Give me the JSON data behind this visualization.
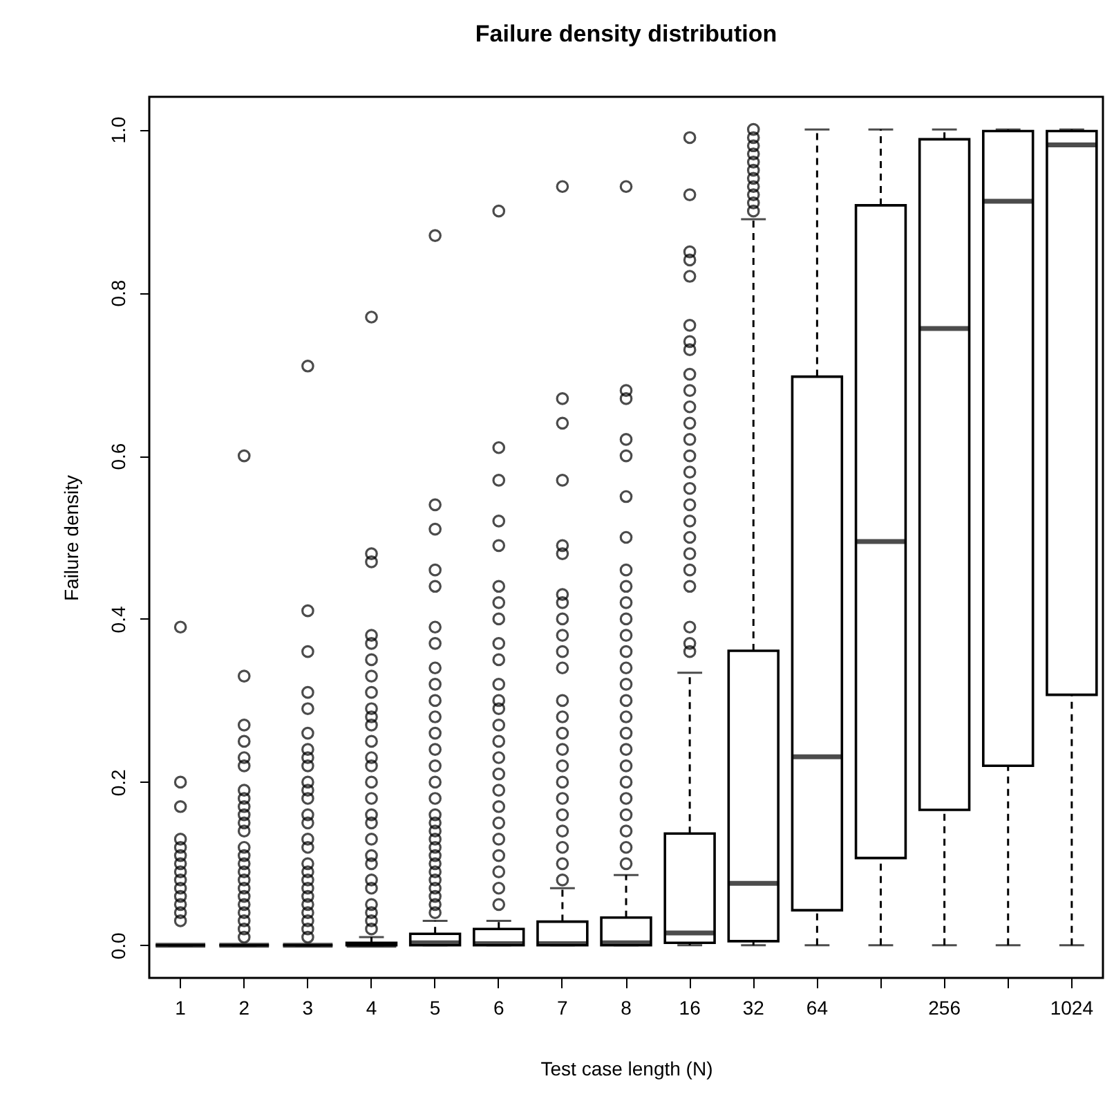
{
  "chart_data": {
    "type": "box",
    "title": "Failure density distribution",
    "xlabel": "Test case length (N)",
    "ylabel": "Failure density",
    "categories": [
      "1",
      "2",
      "3",
      "4",
      "5",
      "6",
      "7",
      "8",
      "16",
      "32",
      "64",
      null,
      "256",
      null,
      "1024"
    ],
    "ylim": [
      -0.04,
      1.04
    ],
    "yticks": [
      {
        "value": 0,
        "label": "0.0"
      },
      {
        "value": 0.2,
        "label": "0.2"
      },
      {
        "value": 0.4,
        "label": "0.4"
      },
      {
        "value": 0.6,
        "label": "0.6"
      },
      {
        "value": 0.8,
        "label": "0.8"
      },
      {
        "value": 1,
        "label": "1.0"
      }
    ],
    "boxes": [
      {
        "low": 0,
        "q1": 0,
        "median": 0,
        "q3": 0,
        "high": 0,
        "outliers": [
          0.39,
          0.2,
          0.17,
          0.13,
          0.12,
          0.11,
          0.1,
          0.09,
          0.08,
          0.07,
          0.06,
          0.05,
          0.04,
          0.03
        ]
      },
      {
        "low": 0,
        "q1": 0,
        "median": 0,
        "q3": 0,
        "high": 0,
        "outliers": [
          0.6,
          0.33,
          0.27,
          0.25,
          0.23,
          0.22,
          0.19,
          0.18,
          0.17,
          0.16,
          0.15,
          0.14,
          0.12,
          0.11,
          0.1,
          0.09,
          0.08,
          0.07,
          0.06,
          0.05,
          0.04,
          0.03,
          0.02,
          0.01
        ]
      },
      {
        "low": 0,
        "q1": 0,
        "median": 0,
        "q3": 0,
        "high": 0,
        "outliers": [
          0.71,
          0.41,
          0.36,
          0.31,
          0.29,
          0.26,
          0.24,
          0.23,
          0.22,
          0.2,
          0.19,
          0.18,
          0.16,
          0.15,
          0.13,
          0.12,
          0.1,
          0.09,
          0.08,
          0.07,
          0.06,
          0.05,
          0.04,
          0.03,
          0.02,
          0.01
        ]
      },
      {
        "low": 0,
        "q1": 0,
        "median": 0,
        "q3": 0.003,
        "high": 0.01,
        "outliers": [
          0.77,
          0.48,
          0.47,
          0.38,
          0.37,
          0.35,
          0.33,
          0.31,
          0.29,
          0.28,
          0.27,
          0.25,
          0.23,
          0.22,
          0.2,
          0.18,
          0.16,
          0.15,
          0.13,
          0.11,
          0.1,
          0.08,
          0.07,
          0.05,
          0.04,
          0.03,
          0.02
        ]
      },
      {
        "low": 0,
        "q1": 0,
        "median": 0.003,
        "q3": 0.014,
        "high": 0.03,
        "outliers": [
          0.87,
          0.54,
          0.51,
          0.46,
          0.44,
          0.39,
          0.37,
          0.34,
          0.32,
          0.3,
          0.28,
          0.26,
          0.24,
          0.22,
          0.2,
          0.18,
          0.16,
          0.15,
          0.14,
          0.13,
          0.12,
          0.11,
          0.1,
          0.09,
          0.08,
          0.07,
          0.06,
          0.05,
          0.04
        ]
      },
      {
        "low": 0,
        "q1": 0,
        "median": 0.002,
        "q3": 0.02,
        "high": 0.03,
        "outliers": [
          0.9,
          0.61,
          0.57,
          0.52,
          0.49,
          0.44,
          0.42,
          0.4,
          0.37,
          0.35,
          0.32,
          0.3,
          0.29,
          0.27,
          0.25,
          0.23,
          0.21,
          0.19,
          0.17,
          0.15,
          0.13,
          0.11,
          0.09,
          0.07,
          0.05
        ]
      },
      {
        "low": 0,
        "q1": 0,
        "median": 0.002,
        "q3": 0.029,
        "high": 0.07,
        "outliers": [
          0.93,
          0.67,
          0.64,
          0.57,
          0.49,
          0.48,
          0.43,
          0.42,
          0.4,
          0.38,
          0.36,
          0.34,
          0.3,
          0.28,
          0.26,
          0.24,
          0.22,
          0.2,
          0.18,
          0.16,
          0.14,
          0.12,
          0.1,
          0.08
        ]
      },
      {
        "low": 0,
        "q1": 0,
        "median": 0.003,
        "q3": 0.034,
        "high": 0.086,
        "outliers": [
          0.93,
          0.68,
          0.67,
          0.62,
          0.6,
          0.55,
          0.5,
          0.46,
          0.44,
          0.42,
          0.4,
          0.38,
          0.36,
          0.34,
          0.32,
          0.3,
          0.28,
          0.26,
          0.24,
          0.22,
          0.2,
          0.18,
          0.16,
          0.14,
          0.12,
          0.1
        ]
      },
      {
        "low": 0,
        "q1": 0.003,
        "median": 0.015,
        "q3": 0.137,
        "high": 0.334,
        "outliers": [
          0.99,
          0.92,
          0.85,
          0.84,
          0.82,
          0.76,
          0.74,
          0.73,
          0.7,
          0.68,
          0.66,
          0.64,
          0.62,
          0.6,
          0.58,
          0.56,
          0.54,
          0.52,
          0.5,
          0.48,
          0.46,
          0.44,
          0.39,
          0.37,
          0.36
        ]
      },
      {
        "low": 0,
        "q1": 0.005,
        "median": 0.076,
        "q3": 0.361,
        "high": 0.89,
        "outliers": [
          1,
          0.99,
          0.98,
          0.97,
          0.96,
          0.95,
          0.94,
          0.93,
          0.92,
          0.91,
          0.9
        ]
      },
      {
        "low": 0,
        "q1": 0.043,
        "median": 0.231,
        "q3": 0.697,
        "high": 1
      },
      {
        "low": 0,
        "q1": 0.107,
        "median": 0.495,
        "q3": 0.907,
        "high": 1
      },
      {
        "low": 0,
        "q1": 0.166,
        "median": 0.756,
        "q3": 0.988,
        "high": 1
      },
      {
        "low": 0,
        "q1": 0.22,
        "median": 0.912,
        "q3": 0.998,
        "high": 1
      },
      {
        "low": 0,
        "q1": 0.307,
        "median": 0.981,
        "q3": 0.998,
        "high": 1
      }
    ]
  }
}
